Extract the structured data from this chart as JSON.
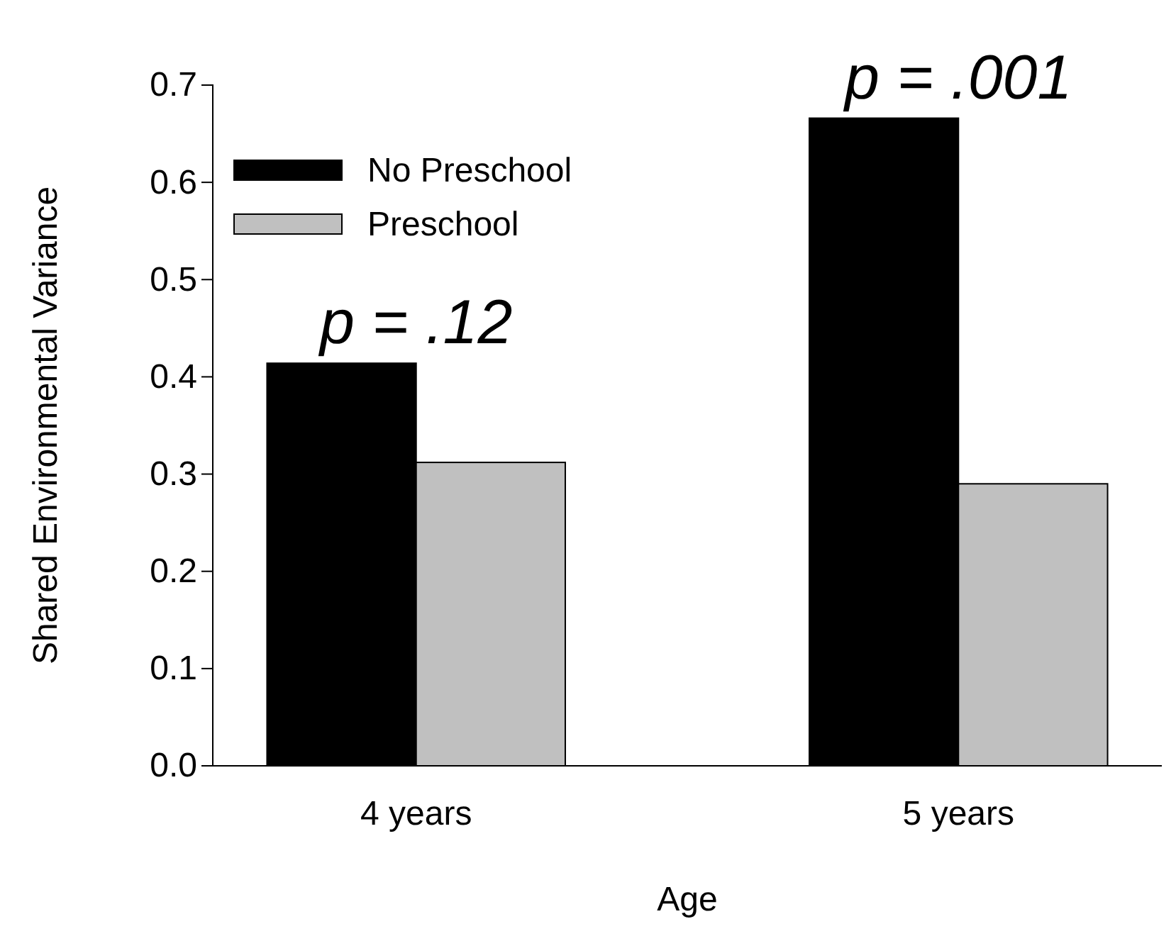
{
  "chart_data": {
    "type": "bar",
    "xlabel": "Age",
    "ylabel": "Shared Environmental Variance",
    "categories": [
      "4 years",
      "5 years"
    ],
    "series": [
      {
        "name": "No Preschool",
        "color": "#000000",
        "values": [
          0.414,
          0.666
        ]
      },
      {
        "name": "Preschool",
        "color": "#c0c0c0",
        "values": [
          0.312,
          0.29
        ]
      }
    ],
    "ylim": [
      0,
      0.7
    ],
    "yticks": [
      {
        "value": 0,
        "label": "0.0"
      },
      0.1,
      0.2,
      0.3,
      0.4,
      0.5,
      0.6,
      0.7
    ],
    "annotations": [
      {
        "text": "p = .12",
        "x": "4 years",
        "y": 0.414
      },
      {
        "text": "p = .001",
        "x": "5 years",
        "y": 0.666
      }
    ],
    "legend": "top left",
    "grid": false
  }
}
